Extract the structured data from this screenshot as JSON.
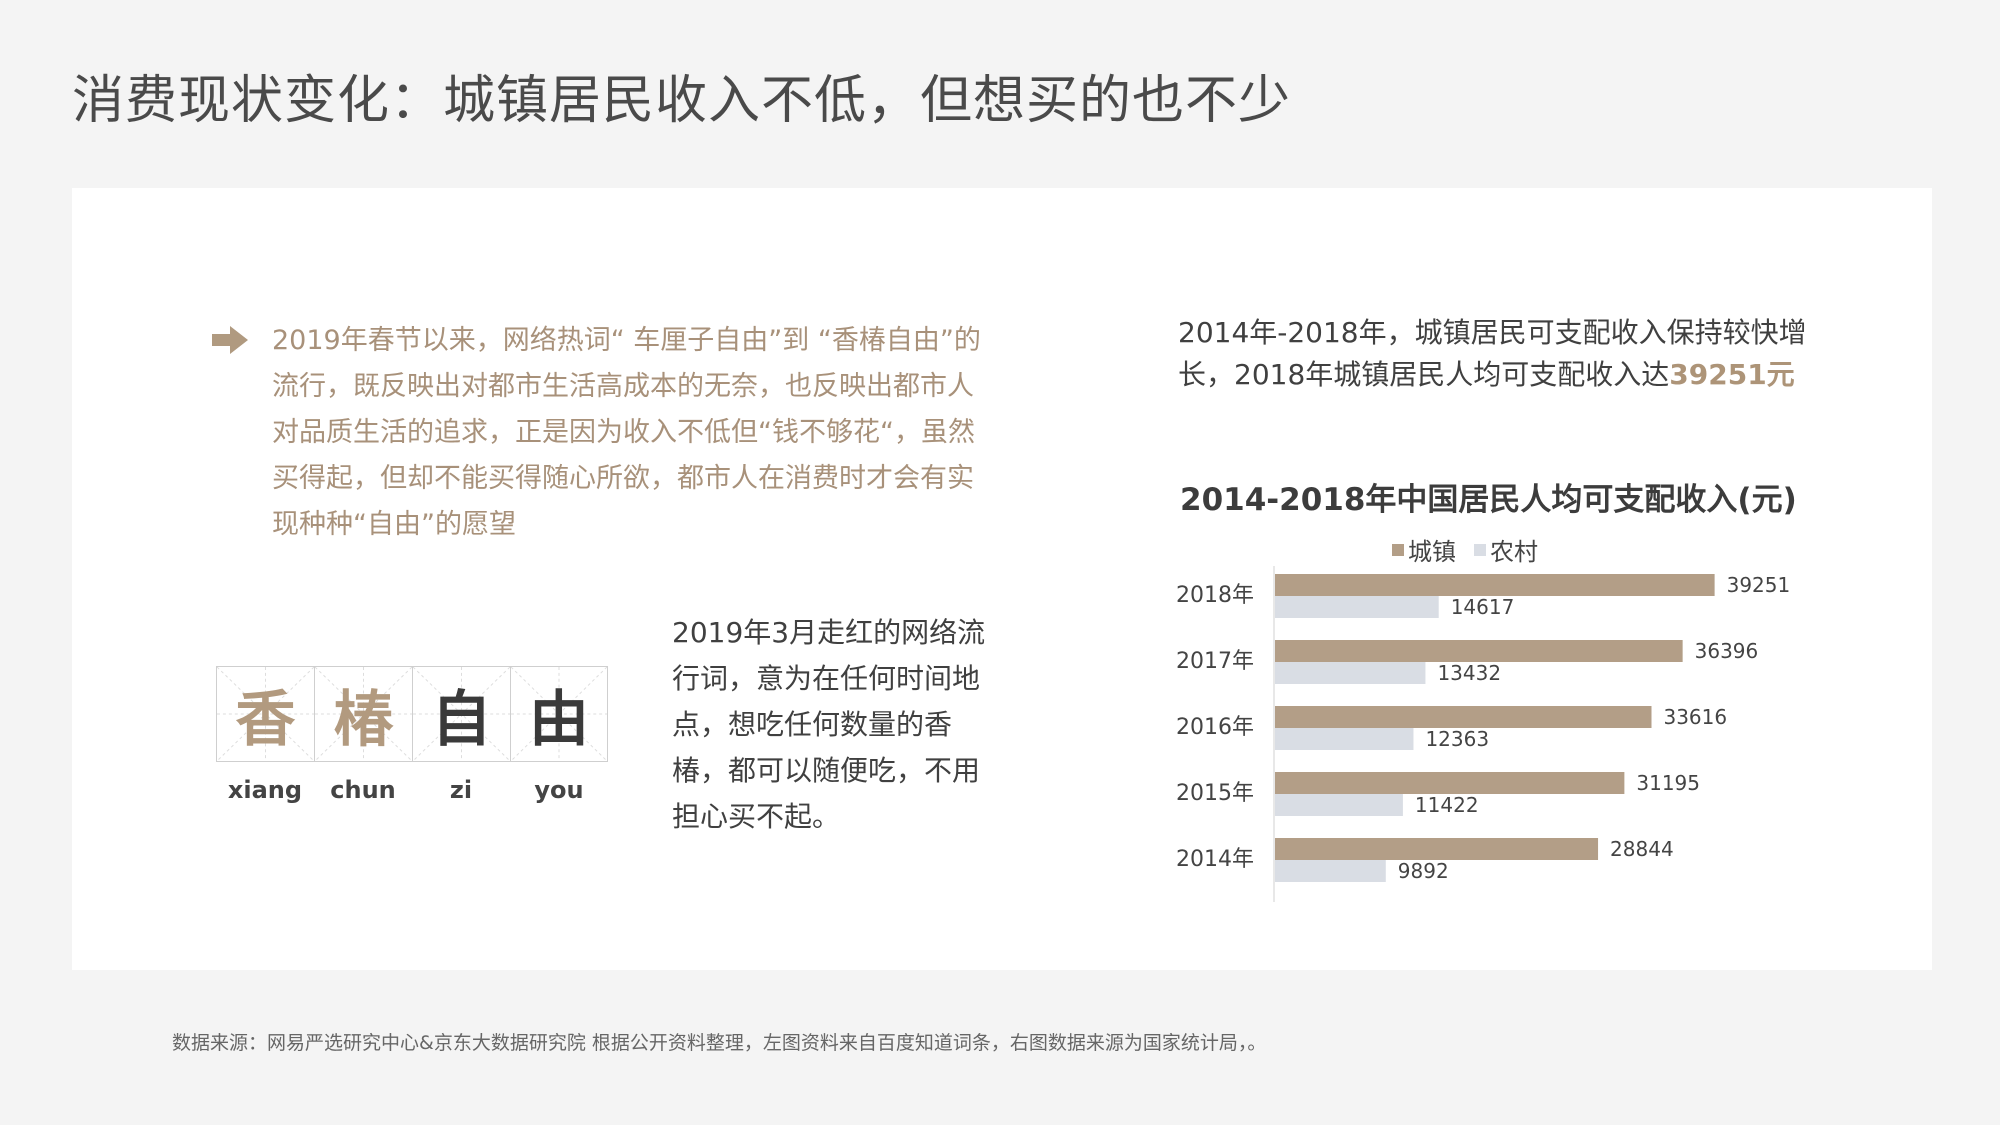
{
  "title": "消费现状变化：城镇居民收入不低，但想买的也不少",
  "intro": "2019年春节以来，网络热词“ 车厘子自由”到 “香椿自由”的流行，既反映出对都市生活高成本的无奈，也反映出都市人对品质生活的追求，正是因为收入不低但“钱不够花“，虽然买得起，但却不能买得随心所欲，都市人在消费时才会有实现种种“自由”的愿望",
  "hanzi": [
    {
      "char": "香",
      "pinyin": "xiang",
      "color": "#b29a7f"
    },
    {
      "char": "椿",
      "pinyin": "chun",
      "color": "#b29a7f"
    },
    {
      "char": "自",
      "pinyin": "zi",
      "color": "#3a3a3a"
    },
    {
      "char": "由",
      "pinyin": "you",
      "color": "#3a3a3a"
    }
  ],
  "description": "2019年3月走红的网络流行词，意为在任何时间地点，想吃任何数量的香椿，都可以随便吃，不用担心买不起。",
  "summary": {
    "text": "2014年-2018年，城镇居民可支配收入保持较快增长，2018年城镇居民人均可支配收入达",
    "highlight": "39251元"
  },
  "source": "数据来源：网易严选研究中心&京东大数据研究院  根据公开资料整理，左图资料来自百度知道词条，右图数据来源为国家统计局，。",
  "colors": {
    "accent": "#b09a80",
    "urban": "#b39e87",
    "rural": "#d9dde4"
  },
  "chart_data": {
    "type": "bar",
    "orientation": "horizontal",
    "title": "2014-2018年中国居民人均可支配收入(元)",
    "categories": [
      "2018年",
      "2017年",
      "2016年",
      "2015年",
      "2014年"
    ],
    "series": [
      {
        "name": "城镇",
        "values": [
          39251,
          36396,
          33616,
          31195,
          28844
        ],
        "color": "#b39e87"
      },
      {
        "name": "农村",
        "values": [
          14617,
          13432,
          12363,
          11422,
          9892
        ],
        "color": "#d9dde4"
      }
    ],
    "xlim": [
      0,
      50000
    ],
    "legend": "top",
    "grid": false,
    "data_labels": true
  }
}
